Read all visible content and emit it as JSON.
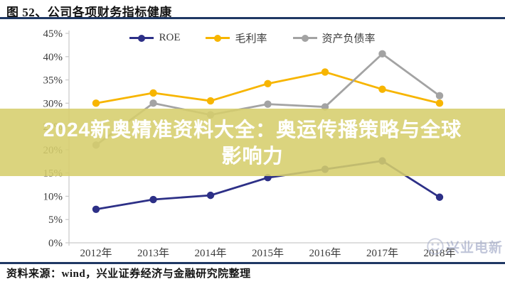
{
  "header": {
    "title": "图 52、公司各项财务指标健康"
  },
  "banner": {
    "line1": "2024新奥精准资料大全：奥运传播策略与全球",
    "line2": "影响力"
  },
  "watermark": {
    "text": "兴业电新"
  },
  "footer": {
    "source": "资料来源：wind，兴业证券经济与金融研究院整理"
  },
  "colors": {
    "accent_rule": "#1f3864",
    "axis": "#c9c9c9",
    "axis_text": "#3b3b3b",
    "banner_bg": "rgba(214,206,108,0.88)",
    "banner_text": "#ffffff",
    "watermark": "#9aa3c2"
  },
  "chart_data": {
    "type": "line",
    "title": "",
    "xlabel": "",
    "ylabel": "",
    "categories": [
      "2012年",
      "2013年",
      "2014年",
      "2015年",
      "2016年",
      "2017年",
      "2018年"
    ],
    "series": [
      {
        "id": "roe",
        "name": "ROE",
        "color": "#2d3087",
        "values": [
          7.2,
          9.3,
          10.2,
          14.0,
          15.8,
          17.6,
          9.8
        ]
      },
      {
        "id": "gross-margin",
        "name": "毛利率",
        "color": "#f7b500",
        "values": [
          30.0,
          32.2,
          30.5,
          34.2,
          36.7,
          33.0,
          30.0
        ]
      },
      {
        "id": "debt-ratio",
        "name": "资产负债率",
        "color": "#a3a3a3",
        "values": [
          21.0,
          30.0,
          27.5,
          29.8,
          29.2,
          40.6,
          31.6
        ]
      }
    ],
    "ylim": [
      0,
      45
    ],
    "y_tick_step": 5,
    "y_ticks": [
      "0%",
      "5%",
      "10%",
      "15%",
      "20%",
      "25%",
      "30%",
      "35%",
      "40%",
      "45%"
    ],
    "grid": false,
    "legend_position": "top-center"
  }
}
